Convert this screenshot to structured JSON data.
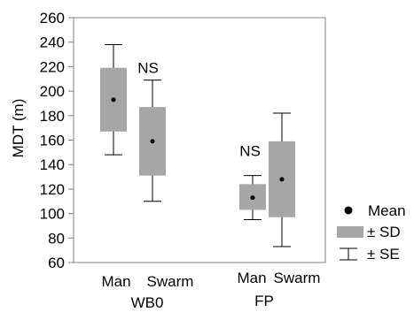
{
  "chart_data": {
    "type": "box",
    "ylabel": "MDT (m)",
    "yticks": [
      60,
      80,
      100,
      120,
      140,
      160,
      180,
      200,
      220,
      240,
      260
    ],
    "ylim": [
      60,
      260
    ],
    "grid": false,
    "legend_position": "bottom-right",
    "legend": {
      "mean_label": "Mean",
      "sd_label": "± SD",
      "se_label": "± SE"
    },
    "box_color": "#a6a6a6",
    "groups": [
      {
        "name": "WB0",
        "annotation": "NS"
      },
      {
        "name": "FP",
        "annotation": "NS"
      }
    ],
    "series": [
      {
        "group": "WB0",
        "category": "Man",
        "mean": 193,
        "sd_low": 167,
        "sd_high": 219,
        "se_low": 148,
        "se_high": 238
      },
      {
        "group": "WB0",
        "category": "Swarm",
        "mean": 159,
        "sd_low": 131,
        "sd_high": 187,
        "se_low": 110,
        "se_high": 209
      },
      {
        "group": "FP",
        "category": "Man",
        "mean": 113,
        "sd_low": 103,
        "sd_high": 124,
        "se_low": 95,
        "se_high": 131
      },
      {
        "group": "FP",
        "category": "Swarm",
        "mean": 128,
        "sd_low": 97,
        "sd_high": 159,
        "se_low": 73,
        "se_high": 182
      }
    ]
  }
}
